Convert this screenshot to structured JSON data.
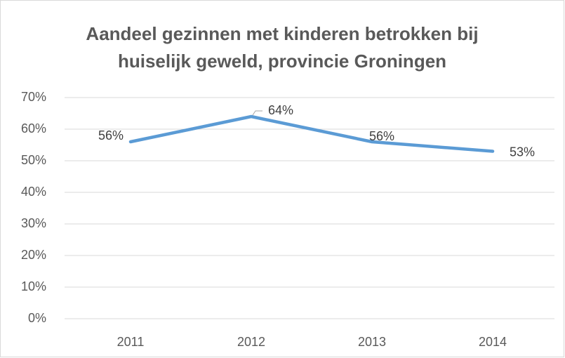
{
  "chart_data": {
    "type": "line",
    "title": [
      "Aandeel gezinnen met kinderen betrokken bij",
      "huiselijk geweld, provincie Groningen"
    ],
    "categories": [
      "2011",
      "2012",
      "2013",
      "2014"
    ],
    "series": [
      {
        "color": "#5b9bd5",
        "values": [
          56,
          64,
          56,
          53
        ],
        "value_labels": [
          "56%",
          "64%",
          "56%",
          "53%"
        ]
      }
    ],
    "ylim": [
      0,
      70
    ],
    "yticks": [
      {
        "value": 0,
        "label": "0%"
      },
      {
        "value": 10,
        "label": "10%"
      },
      {
        "value": 20,
        "label": "20%"
      },
      {
        "value": 30,
        "label": "30%"
      },
      {
        "value": 40,
        "label": "40%"
      },
      {
        "value": 50,
        "label": "50%"
      },
      {
        "value": 60,
        "label": "60%"
      },
      {
        "value": 70,
        "label": "70%"
      }
    ],
    "grid": true
  }
}
